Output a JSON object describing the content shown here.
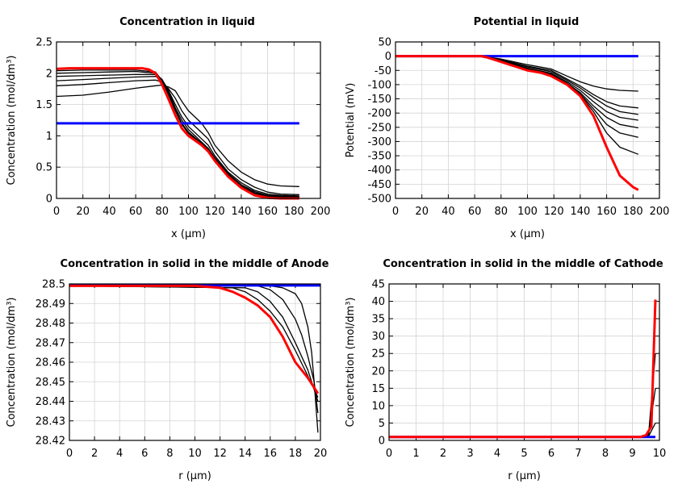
{
  "chart_data": [
    {
      "type": "line",
      "title": "Concentration in liquid",
      "xlabel": "x (µm)",
      "ylabel": "Concentration (mol/dm³)",
      "xlim": [
        0,
        200
      ],
      "ylim": [
        0,
        2.5
      ],
      "xticks": [
        "0",
        "20",
        "40",
        "60",
        "80",
        "100",
        "120",
        "140",
        "160",
        "180",
        "200"
      ],
      "yticks": [
        "0",
        "0.5",
        "1",
        "1.5",
        "2",
        "2.5"
      ],
      "grid": true,
      "series": [
        {
          "color": "#000000",
          "x": [
            0,
            20,
            40,
            60,
            75,
            80,
            85,
            90,
            95,
            100,
            110,
            115,
            120,
            130,
            140,
            150,
            160,
            170,
            184
          ],
          "y": [
            1.63,
            1.65,
            1.7,
            1.76,
            1.8,
            1.81,
            1.78,
            1.72,
            1.55,
            1.4,
            1.2,
            1.05,
            0.85,
            0.6,
            0.42,
            0.3,
            0.23,
            0.2,
            0.19
          ]
        },
        {
          "color": "#000000",
          "x": [
            0,
            20,
            40,
            60,
            75,
            80,
            85,
            90,
            95,
            100,
            110,
            115,
            120,
            130,
            140,
            150,
            160,
            170,
            184
          ],
          "y": [
            1.8,
            1.82,
            1.85,
            1.88,
            1.89,
            1.86,
            1.75,
            1.6,
            1.4,
            1.25,
            1.05,
            0.95,
            0.75,
            0.47,
            0.3,
            0.18,
            0.1,
            0.07,
            0.06
          ]
        },
        {
          "color": "#000000",
          "x": [
            0,
            20,
            40,
            60,
            75,
            80,
            85,
            90,
            95,
            100,
            110,
            115,
            120,
            130,
            140,
            150,
            160,
            170,
            184
          ],
          "y": [
            1.88,
            1.9,
            1.92,
            1.94,
            1.95,
            1.9,
            1.72,
            1.5,
            1.3,
            1.15,
            0.95,
            0.85,
            0.68,
            0.42,
            0.25,
            0.13,
            0.07,
            0.05,
            0.04
          ]
        },
        {
          "color": "#000000",
          "x": [
            0,
            20,
            40,
            60,
            75,
            80,
            85,
            90,
            95,
            100,
            110,
            115,
            120,
            130,
            140,
            150,
            160,
            170,
            184
          ],
          "y": [
            1.95,
            1.96,
            1.97,
            1.98,
            1.98,
            1.9,
            1.7,
            1.45,
            1.25,
            1.1,
            0.9,
            0.8,
            0.65,
            0.4,
            0.22,
            0.11,
            0.05,
            0.04,
            0.03
          ]
        },
        {
          "color": "#000000",
          "x": [
            0,
            20,
            40,
            60,
            75,
            80,
            85,
            90,
            95,
            100,
            110,
            115,
            120,
            130,
            140,
            150,
            160,
            170,
            184
          ],
          "y": [
            2.0,
            2.01,
            2.02,
            2.03,
            2.0,
            1.9,
            1.68,
            1.42,
            1.2,
            1.06,
            0.88,
            0.78,
            0.63,
            0.38,
            0.2,
            0.09,
            0.04,
            0.03,
            0.03
          ]
        },
        {
          "color": "#000000",
          "x": [
            0,
            20,
            40,
            60,
            75,
            80,
            85,
            90,
            95,
            100,
            110,
            115,
            120,
            130,
            140,
            150,
            160,
            170,
            184
          ],
          "y": [
            2.04,
            2.05,
            2.05,
            2.05,
            2.02,
            1.88,
            1.65,
            1.4,
            1.18,
            1.04,
            0.86,
            0.76,
            0.62,
            0.37,
            0.19,
            0.08,
            0.03,
            0.02,
            0.02
          ]
        },
        {
          "color": "#0000ff",
          "x": [
            0,
            184
          ],
          "y": [
            1.2,
            1.2
          ]
        },
        {
          "color": "#ff0000",
          "x": [
            0,
            10,
            20,
            30,
            40,
            50,
            60,
            65,
            70,
            75,
            80,
            85,
            90,
            95,
            100,
            110,
            115,
            120,
            130,
            140,
            150,
            160,
            170,
            184
          ],
          "y": [
            2.07,
            2.08,
            2.08,
            2.08,
            2.08,
            2.08,
            2.08,
            2.08,
            2.06,
            2.0,
            1.82,
            1.58,
            1.33,
            1.12,
            1.0,
            0.85,
            0.75,
            0.6,
            0.35,
            0.17,
            0.05,
            0.01,
            0.0,
            0.0
          ]
        }
      ]
    },
    {
      "type": "line",
      "title": "Potential in liquid",
      "xlabel": "x (µm)",
      "ylabel": "Potential (mV)",
      "xlim": [
        0,
        200
      ],
      "ylim": [
        -500,
        50
      ],
      "xticks": [
        "0",
        "20",
        "40",
        "60",
        "80",
        "100",
        "120",
        "140",
        "160",
        "180",
        "200"
      ],
      "yticks": [
        "-500",
        "-450",
        "-400",
        "-350",
        "-300",
        "-250",
        "-200",
        "-150",
        "-100",
        "-50",
        "0",
        "50"
      ],
      "grid": true,
      "series": [
        {
          "color": "#000000",
          "x": [
            0,
            65,
            80,
            100,
            118,
            130,
            140,
            150,
            160,
            170,
            184
          ],
          "y": [
            0,
            0,
            -10,
            -30,
            -45,
            -70,
            -90,
            -105,
            -115,
            -120,
            -123
          ]
        },
        {
          "color": "#000000",
          "x": [
            0,
            65,
            80,
            100,
            118,
            130,
            140,
            150,
            160,
            170,
            184
          ],
          "y": [
            0,
            0,
            -12,
            -35,
            -50,
            -80,
            -105,
            -135,
            -160,
            -175,
            -182
          ]
        },
        {
          "color": "#000000",
          "x": [
            0,
            65,
            80,
            100,
            118,
            130,
            140,
            150,
            160,
            170,
            184
          ],
          "y": [
            0,
            0,
            -14,
            -38,
            -55,
            -85,
            -112,
            -145,
            -175,
            -195,
            -205
          ]
        },
        {
          "color": "#000000",
          "x": [
            0,
            65,
            80,
            100,
            118,
            130,
            140,
            150,
            160,
            170,
            184
          ],
          "y": [
            0,
            0,
            -16,
            -42,
            -60,
            -90,
            -120,
            -160,
            -195,
            -215,
            -225
          ]
        },
        {
          "color": "#000000",
          "x": [
            0,
            65,
            80,
            100,
            118,
            130,
            140,
            150,
            160,
            170,
            184
          ],
          "y": [
            0,
            0,
            -17,
            -45,
            -63,
            -95,
            -128,
            -175,
            -215,
            -240,
            -252
          ]
        },
        {
          "color": "#000000",
          "x": [
            0,
            65,
            80,
            100,
            118,
            130,
            140,
            150,
            160,
            170,
            184
          ],
          "y": [
            0,
            0,
            -18,
            -47,
            -65,
            -97,
            -133,
            -185,
            -240,
            -270,
            -285
          ]
        },
        {
          "color": "#000000",
          "x": [
            0,
            65,
            80,
            100,
            118,
            130,
            140,
            150,
            160,
            170,
            184
          ],
          "y": [
            0,
            0,
            -19,
            -48,
            -67,
            -98,
            -136,
            -195,
            -270,
            -320,
            -345
          ]
        },
        {
          "color": "#0000ff",
          "x": [
            0,
            184
          ],
          "y": [
            0,
            0
          ]
        },
        {
          "color": "#ff0000",
          "x": [
            0,
            65,
            70,
            80,
            90,
            100,
            110,
            118,
            130,
            140,
            150,
            160,
            170,
            180,
            184
          ],
          "y": [
            0,
            0,
            -5,
            -20,
            -35,
            -50,
            -58,
            -70,
            -100,
            -140,
            -210,
            -320,
            -420,
            -460,
            -470
          ]
        }
      ]
    },
    {
      "type": "line",
      "title": "Concentration in solid in the middle of Anode",
      "xlabel": "r (µm)",
      "ylabel": "Concentration (mol/dm³)",
      "xlim": [
        0,
        20
      ],
      "ylim": [
        28.42,
        28.5
      ],
      "xticks": [
        "0",
        "2",
        "4",
        "6",
        "8",
        "10",
        "12",
        "14",
        "16",
        "18",
        "20"
      ],
      "yticks": [
        "28.42",
        "28.43",
        "28.44",
        "28.45",
        "28.46",
        "28.47",
        "28.48",
        "28.49",
        "28.5"
      ],
      "grid": true,
      "series": [
        {
          "color": "#000000",
          "x": [
            0,
            16,
            17,
            18,
            18.5,
            19,
            19.3,
            19.5,
            19.8
          ],
          "y": [
            28.499,
            28.499,
            28.498,
            28.495,
            28.49,
            28.478,
            28.465,
            28.45,
            28.424
          ]
        },
        {
          "color": "#000000",
          "x": [
            0,
            15,
            16,
            17,
            18,
            18.5,
            19,
            19.5,
            19.8
          ],
          "y": [
            28.499,
            28.499,
            28.497,
            28.492,
            28.482,
            28.474,
            28.463,
            28.45,
            28.434
          ]
        },
        {
          "color": "#000000",
          "x": [
            0,
            14,
            15,
            16,
            17,
            18,
            19,
            19.8
          ],
          "y": [
            28.499,
            28.498,
            28.496,
            28.491,
            28.483,
            28.47,
            28.456,
            28.44
          ]
        },
        {
          "color": "#000000",
          "x": [
            0,
            13,
            14,
            15,
            16,
            17,
            18,
            19,
            19.8
          ],
          "y": [
            28.499,
            28.498,
            28.496,
            28.492,
            28.486,
            28.478,
            28.466,
            28.453,
            28.442
          ]
        },
        {
          "color": "#0000ff",
          "x": [
            0,
            20
          ],
          "y": [
            28.4992,
            28.4992
          ]
        },
        {
          "color": "#ff0000",
          "x": [
            0,
            10,
            12,
            13,
            14,
            15,
            16,
            17,
            18,
            19,
            19.8
          ],
          "y": [
            28.499,
            28.499,
            28.498,
            28.496,
            28.493,
            28.489,
            28.483,
            28.473,
            28.46,
            28.452,
            28.444
          ]
        }
      ]
    },
    {
      "type": "line",
      "title": "Concentration in solid in the middle of Cathode",
      "xlabel": "r (µm)",
      "ylabel": "Concentration (mol/dm³)",
      "xlim": [
        0,
        10
      ],
      "ylim": [
        0,
        45
      ],
      "xticks": [
        "0",
        "1",
        "2",
        "3",
        "4",
        "5",
        "6",
        "7",
        "8",
        "9",
        "10"
      ],
      "yticks": [
        "0",
        "5",
        "10",
        "15",
        "20",
        "25",
        "30",
        "35",
        "40",
        "45"
      ],
      "grid": true,
      "series": [
        {
          "color": "#000000",
          "x": [
            0,
            9.4,
            9.6,
            9.85
          ],
          "y": [
            1,
            1,
            1.8,
            25
          ]
        },
        {
          "color": "#000000",
          "x": [
            0,
            9.4,
            9.6,
            9.85
          ],
          "y": [
            1,
            1,
            1.5,
            15
          ]
        },
        {
          "color": "#000000",
          "x": [
            0,
            9.4,
            9.6,
            9.85
          ],
          "y": [
            1,
            1,
            1.2,
            5
          ]
        },
        {
          "color": "#0000ff",
          "x": [
            0,
            9.85
          ],
          "y": [
            1,
            1
          ]
        },
        {
          "color": "#ff0000",
          "x": [
            0,
            9.3,
            9.5,
            9.7,
            9.85
          ],
          "y": [
            1,
            1,
            1.5,
            4,
            40.5
          ]
        }
      ]
    }
  ]
}
